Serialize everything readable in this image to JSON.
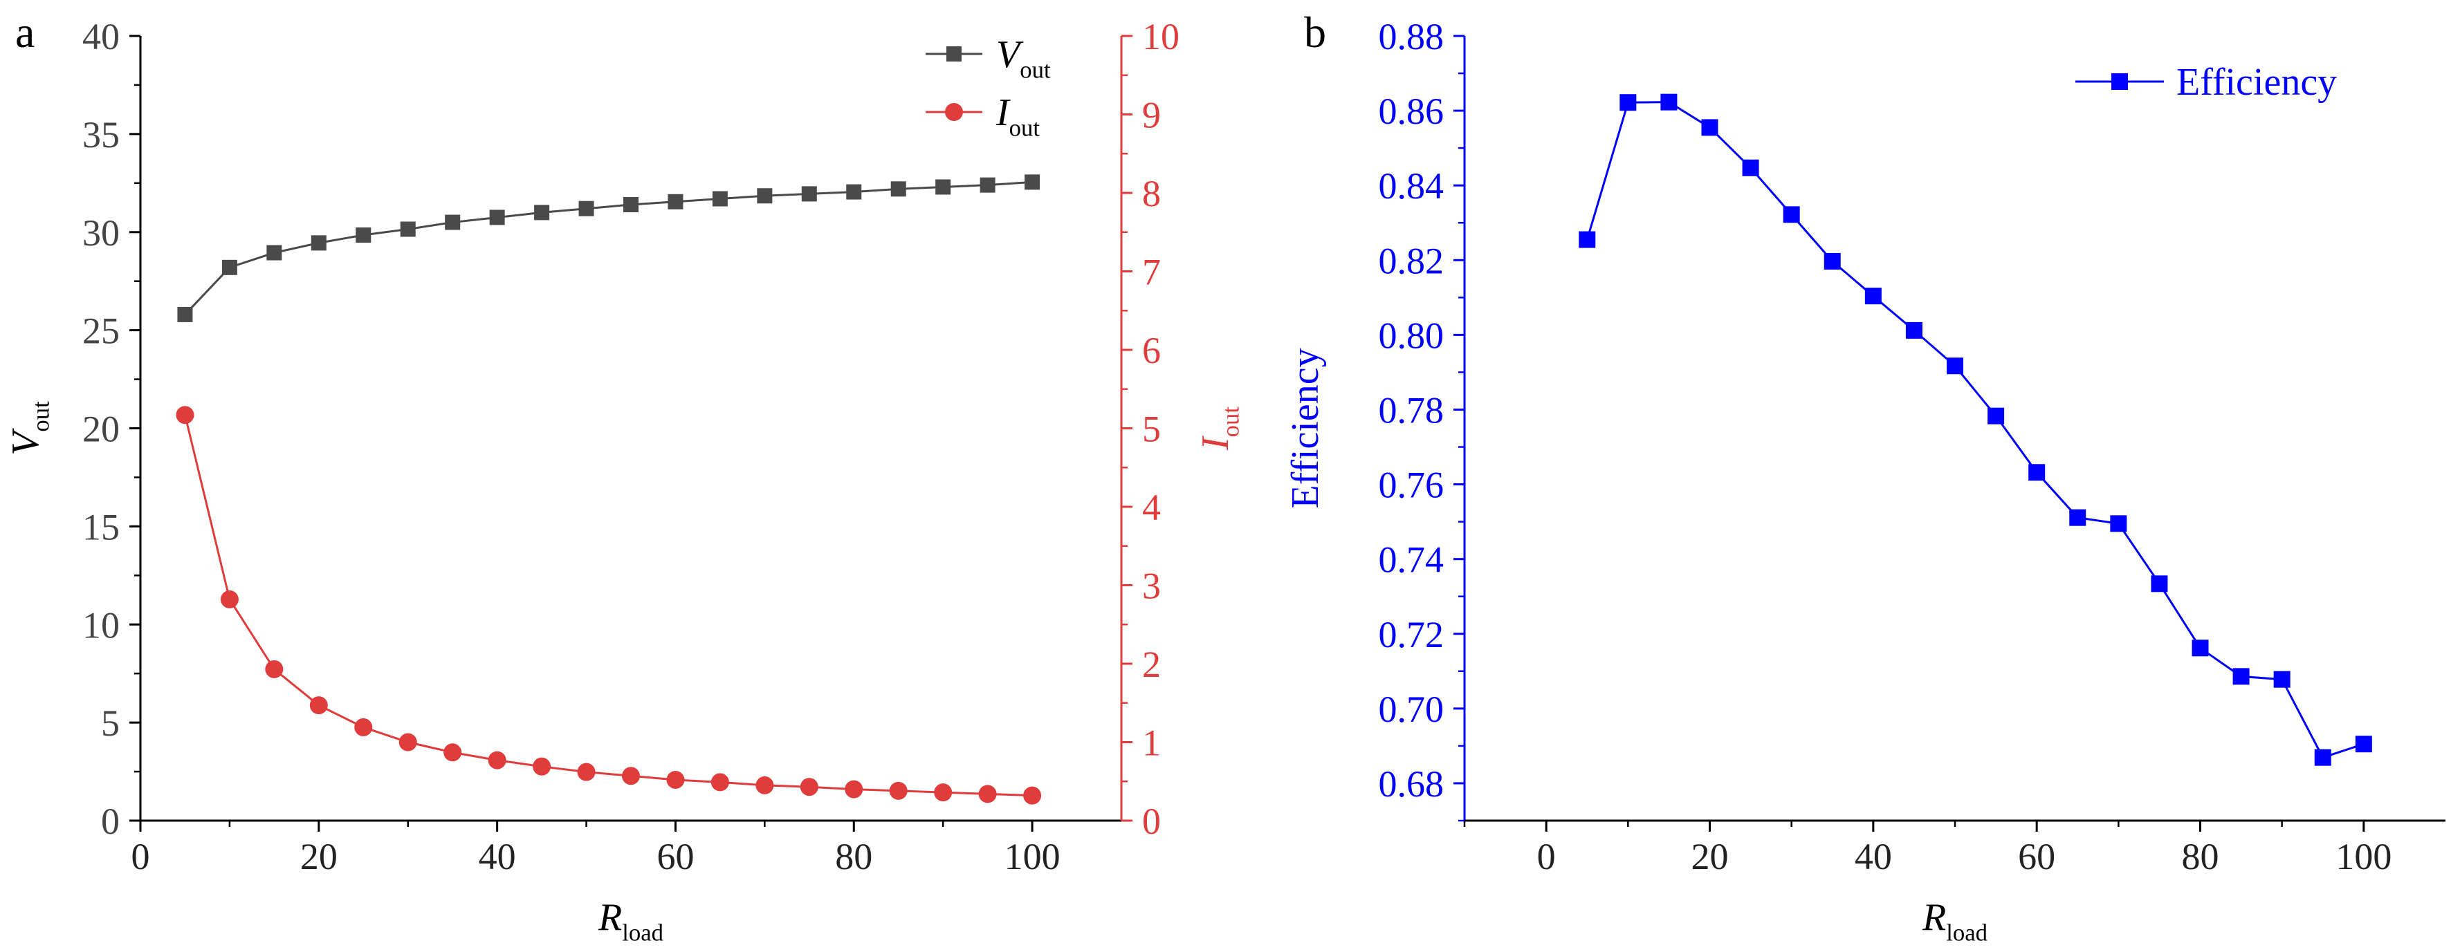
{
  "panels": {
    "a": {
      "label": "a"
    },
    "b": {
      "label": "b"
    }
  },
  "colors": {
    "vout": "#4a4a4a",
    "iout": "#e03c3c",
    "efficiency": "#0000ff",
    "axis_left": "#000000"
  },
  "chart_data": [
    {
      "id": "a",
      "type": "line",
      "x_label": {
        "main": "R",
        "sub": "load"
      },
      "x": [
        5,
        10,
        15,
        20,
        25,
        30,
        35,
        40,
        45,
        50,
        55,
        60,
        65,
        70,
        75,
        80,
        85,
        90,
        95,
        100
      ],
      "xlim": [
        0,
        110
      ],
      "xticks": [
        0,
        20,
        40,
        60,
        80,
        100
      ],
      "xtick_labels": [
        "0",
        "20",
        "40",
        "60",
        "80",
        "100"
      ],
      "series": [
        {
          "name": "V_out",
          "legend_main": "V",
          "legend_sub": "out",
          "axis": "left",
          "marker": "square",
          "values": [
            25.8,
            28.2,
            28.95,
            29.45,
            29.85,
            30.15,
            30.5,
            30.75,
            31.0,
            31.2,
            31.4,
            31.55,
            31.7,
            31.85,
            31.95,
            32.05,
            32.2,
            32.3,
            32.4,
            32.55
          ]
        },
        {
          "name": "I_out",
          "legend_main": "I",
          "legend_sub": "out",
          "axis": "right",
          "marker": "circle",
          "values": [
            5.17,
            2.82,
            1.93,
            1.47,
            1.19,
            1.0,
            0.87,
            0.77,
            0.69,
            0.62,
            0.57,
            0.52,
            0.49,
            0.45,
            0.43,
            0.4,
            0.38,
            0.36,
            0.34,
            0.32
          ]
        }
      ],
      "y_left": {
        "label_main": "V",
        "label_sub": "out",
        "ylim": [
          0,
          40
        ],
        "ticks": [
          0,
          5,
          10,
          15,
          20,
          25,
          30,
          35,
          40
        ],
        "tick_labels": [
          "0",
          "5",
          "10",
          "15",
          "20",
          "25",
          "30",
          "35",
          "40"
        ]
      },
      "y_right": {
        "label_main": "I",
        "label_sub": "out",
        "ylim": [
          0,
          10
        ],
        "ticks": [
          0,
          1,
          2,
          3,
          4,
          5,
          6,
          7,
          8,
          9,
          10
        ],
        "tick_labels": [
          "0",
          "1",
          "2",
          "3",
          "4",
          "5",
          "6",
          "7",
          "8",
          "9",
          "10"
        ]
      },
      "legend_position": "top-right"
    },
    {
      "id": "b",
      "type": "line",
      "x_label": {
        "main": "R",
        "sub": "load"
      },
      "x": [
        5,
        10,
        15,
        20,
        25,
        30,
        35,
        40,
        45,
        50,
        55,
        60,
        65,
        70,
        75,
        80,
        85,
        90,
        95,
        100
      ],
      "xlim": [
        -10,
        110
      ],
      "xticks": [
        0,
        20,
        40,
        60,
        80,
        100
      ],
      "xtick_labels": [
        "0",
        "20",
        "40",
        "60",
        "80",
        "100"
      ],
      "series": [
        {
          "name": "Efficiency",
          "legend_main": "Efficiency",
          "legend_sub": "",
          "axis": "left",
          "marker": "square",
          "values": [
            0.8255,
            0.8622,
            0.8623,
            0.8555,
            0.8447,
            0.8322,
            0.8197,
            0.8104,
            0.8012,
            0.7917,
            0.7783,
            0.7632,
            0.7511,
            0.7495,
            0.7334,
            0.7162,
            0.7086,
            0.7078,
            0.6869,
            0.6905
          ]
        }
      ],
      "y_left": {
        "label_main": "Efficiency",
        "label_sub": "",
        "ylim": [
          0.67,
          0.88
        ],
        "ticks": [
          0.68,
          0.7,
          0.72,
          0.74,
          0.76,
          0.78,
          0.8,
          0.82,
          0.84,
          0.86,
          0.88
        ],
        "tick_labels": [
          "0.68",
          "0.70",
          "0.72",
          "0.74",
          "0.76",
          "0.78",
          "0.80",
          "0.82",
          "0.84",
          "0.86",
          "0.88"
        ]
      },
      "legend_position": "top-right"
    }
  ]
}
